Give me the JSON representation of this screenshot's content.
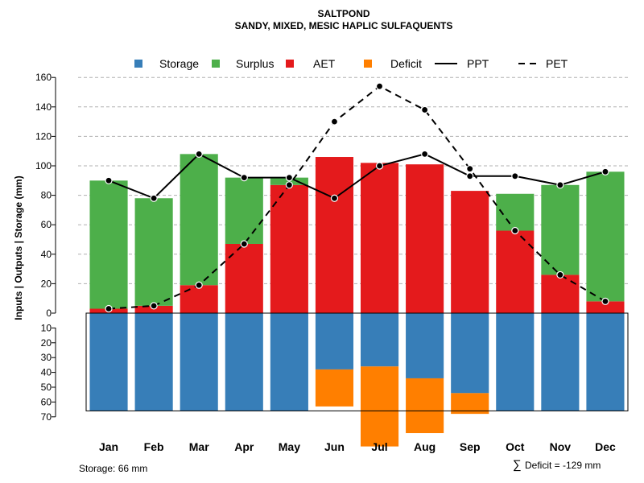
{
  "chart_data": {
    "type": "bar",
    "title": "SALTPOND",
    "subtitle": "SANDY, MIXED, MESIC HAPLIC SULFAQUENTS",
    "ylabel": "Inputs | Outputs | Storage    (mm)",
    "categories": [
      "Jan",
      "Feb",
      "Mar",
      "Apr",
      "May",
      "Jun",
      "Jul",
      "Aug",
      "Sep",
      "Oct",
      "Nov",
      "Dec"
    ],
    "ylim_top": [
      0,
      160
    ],
    "ylim_bottom": [
      0,
      70
    ],
    "yticks_top": [
      "0",
      "20",
      "40",
      "60",
      "80",
      "100",
      "120",
      "140",
      "160"
    ],
    "yticks_bottom": [
      "10",
      "20",
      "30",
      "40",
      "50",
      "60",
      "70"
    ],
    "legend": [
      "Storage",
      "Surplus",
      "AET",
      "Deficit",
      "PPT",
      "PET"
    ],
    "colors": {
      "Storage": "#377eb8",
      "Surplus": "#4daf4a",
      "AET": "#e41a1c",
      "Deficit": "#ff7f00"
    },
    "series": [
      {
        "name": "AET",
        "values": [
          3,
          5,
          19,
          47,
          87,
          106,
          102,
          101,
          83,
          56,
          26,
          8
        ]
      },
      {
        "name": "Surplus",
        "values": [
          87,
          73,
          89,
          45,
          5,
          0,
          0,
          0,
          0,
          25,
          61,
          88
        ]
      },
      {
        "name": "Storage",
        "values": [
          66,
          66,
          66,
          66,
          66,
          38,
          36,
          44,
          54,
          66,
          66,
          66
        ]
      },
      {
        "name": "Deficit",
        "values": [
          0,
          0,
          0,
          0,
          0,
          25,
          54,
          37,
          14,
          0,
          0,
          0
        ]
      },
      {
        "name": "PPT",
        "values": [
          90,
          78,
          108,
          92,
          92,
          78,
          100,
          108,
          93,
          93,
          87,
          96
        ]
      },
      {
        "name": "PET",
        "values": [
          3,
          5,
          19,
          47,
          87,
          130,
          154,
          138,
          98,
          56,
          26,
          8
        ]
      }
    ],
    "storage_capacity": 66
  },
  "footer": {
    "storage_label": "Storage: 66 mm",
    "deficit_symbol": "∑",
    "deficit_label": "Deficit = -129 mm"
  }
}
